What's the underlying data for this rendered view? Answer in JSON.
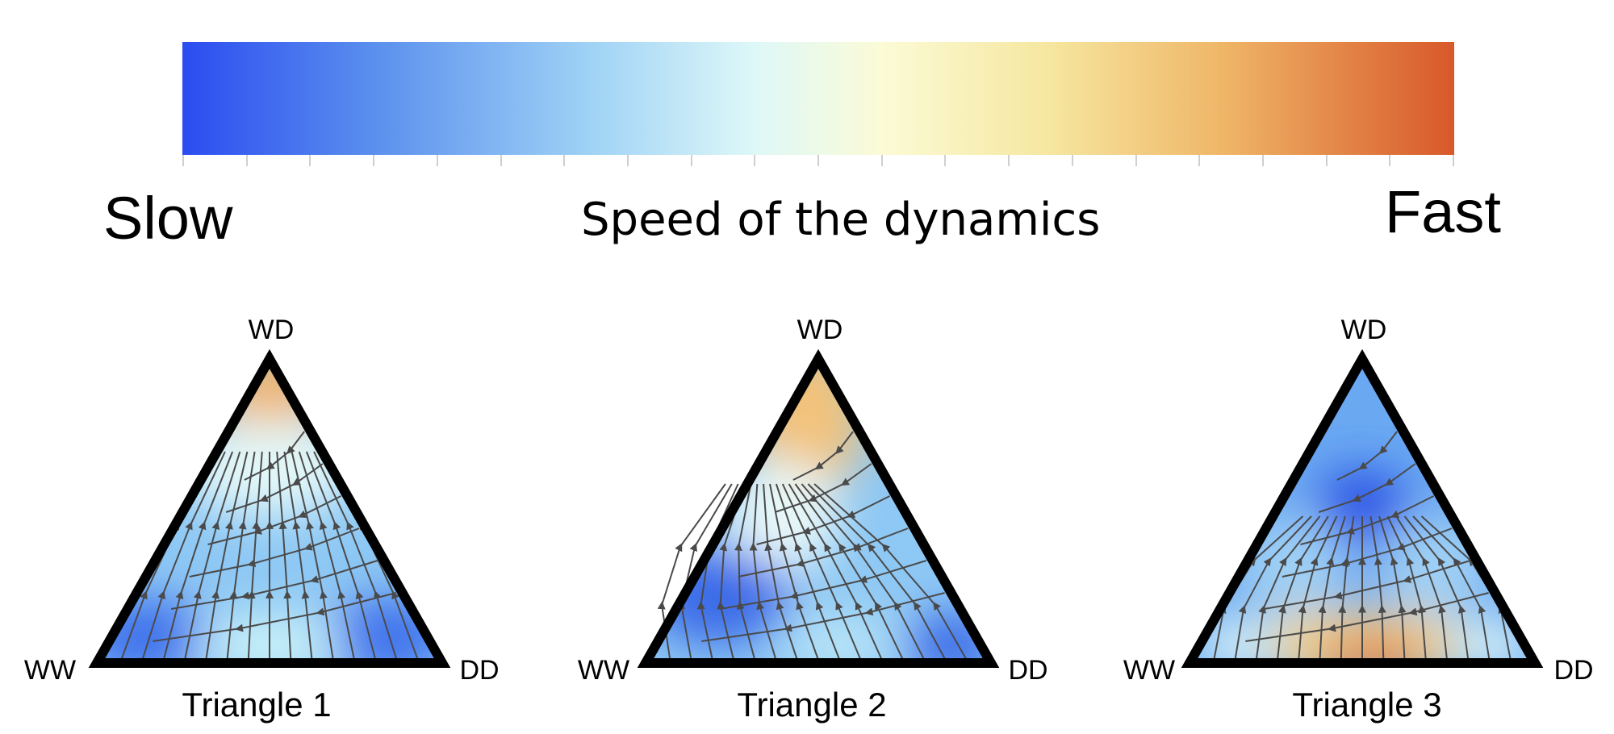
{
  "colorbar": {
    "left_label": "Slow",
    "right_label": "Fast",
    "title": "Speed of the dynamics",
    "gradient_colors": [
      "#2b4cf0",
      "#9fd2f5",
      "#def8f8",
      "#fbfbd6",
      "#efb567",
      "#d8582a"
    ]
  },
  "triangles": [
    {
      "caption": "Triangle 1",
      "top_label": "WD",
      "left_label": "WW",
      "right_label": "DD"
    },
    {
      "caption": "Triangle 2",
      "top_label": "WD",
      "left_label": "WW",
      "right_label": "DD"
    },
    {
      "caption": "Triangle 3",
      "top_label": "WD",
      "left_label": "WW",
      "right_label": "DD"
    }
  ]
}
